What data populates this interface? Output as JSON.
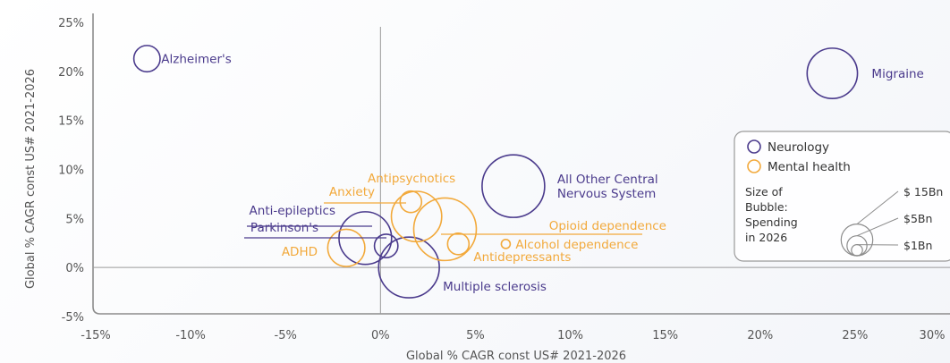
{
  "chart_data": {
    "type": "bubble",
    "xlabel": "Global % CAGR const US# 2021-2026",
    "ylabel": "Global % CAGR const US# 2021-2026",
    "xlim": [
      -15,
      30
    ],
    "ylim": [
      -5,
      25
    ],
    "x_ticks": [
      "-15%",
      "-10%",
      "-5%",
      "0%",
      "5%",
      "10%",
      "15%",
      "20%",
      "25%",
      "30%"
    ],
    "y_ticks": [
      "25%",
      "20%",
      "15%",
      "10%",
      "5%",
      "0%",
      "-5%"
    ],
    "colors": {
      "neurology": "#4a3a8c",
      "mental_health": "#f2a93b"
    },
    "series": [
      {
        "name": "Neurology",
        "key": "neurology"
      },
      {
        "name": "Mental health",
        "key": "mental_health"
      }
    ],
    "points": [
      {
        "label": "Alzheimer's",
        "group": "neurology",
        "x": -12.3,
        "y": 21.3,
        "size_bn": 1.5
      },
      {
        "label": "Migraine",
        "group": "neurology",
        "x": 23.8,
        "y": 19.8,
        "size_bn": 5.5
      },
      {
        "label": "All Other Central\nNervous System",
        "group": "neurology",
        "x": 7.0,
        "y": 8.3,
        "size_bn": 8.5
      },
      {
        "label": "Anti-epileptics",
        "group": "neurology",
        "x": -0.8,
        "y": 3.0,
        "size_bn": 6.0
      },
      {
        "label": "Parkinson's",
        "group": "neurology",
        "x": 0.3,
        "y": 2.2,
        "size_bn": 1.2
      },
      {
        "label": "Multiple sclerosis",
        "group": "neurology",
        "x": 1.5,
        "y": 0.0,
        "size_bn": 8.0
      },
      {
        "label": "Antipsychotics",
        "group": "mental_health",
        "x": 1.9,
        "y": 5.2,
        "size_bn": 5.5
      },
      {
        "label": "Anxiety",
        "group": "mental_health",
        "x": 1.6,
        "y": 6.7,
        "size_bn": 1.0
      },
      {
        "label": "Opioid dependence",
        "group": "mental_health",
        "x": 3.4,
        "y": 3.9,
        "size_bn": 8.5
      },
      {
        "label": "Antidepressants",
        "group": "mental_health",
        "x": 4.1,
        "y": 2.4,
        "size_bn": 1.0
      },
      {
        "label": "Alcohol dependence",
        "group": "mental_health",
        "x": 6.6,
        "y": 2.4,
        "size_bn": 0.1
      },
      {
        "label": "ADHD",
        "group": "mental_health",
        "x": -1.8,
        "y": 2.0,
        "size_bn": 3.0
      }
    ],
    "size_legend": {
      "title_lines": [
        "Size of",
        "Bubble:",
        "Spending",
        "in 2026"
      ],
      "entries": [
        {
          "label": "$ 15Bn",
          "value": 15
        },
        {
          "label": "$5Bn",
          "value": 5
        },
        {
          "label": "$1Bn",
          "value": 1
        }
      ]
    }
  }
}
